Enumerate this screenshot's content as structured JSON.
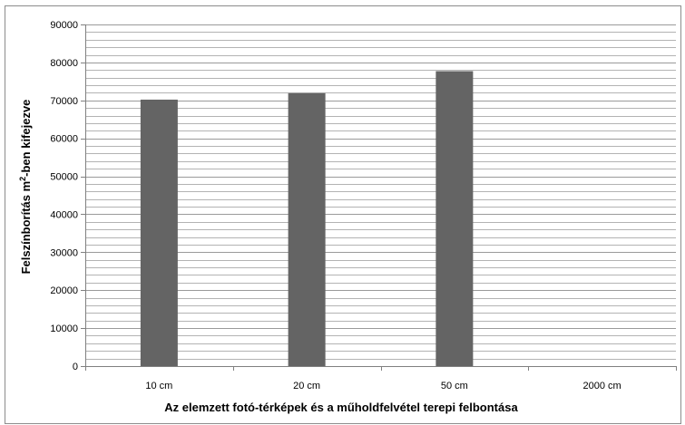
{
  "chart_data": {
    "type": "bar",
    "categories": [
      "10 cm",
      "20 cm",
      "50 cm",
      "2000 cm"
    ],
    "values": [
      70200,
      71900,
      77700,
      0
    ],
    "xlabel": "Az elemzett fotó-térképek és a műholdfelvétel  terepi felbontása",
    "ylabel_parts": [
      "Felszínborítás m",
      "2",
      "-ben kifejezve"
    ],
    "ylim": [
      0,
      90000
    ],
    "major_tick_step": 10000,
    "minor_tick_step": 2000,
    "y_tick_labels": [
      "0",
      "10000",
      "20000",
      "30000",
      "40000",
      "50000",
      "60000",
      "70000",
      "80000",
      "90000"
    ],
    "grid": true,
    "legend": "none",
    "colors": {
      "bar": "#646464",
      "grid": "#9a9a9a",
      "axis": "#808080"
    }
  }
}
